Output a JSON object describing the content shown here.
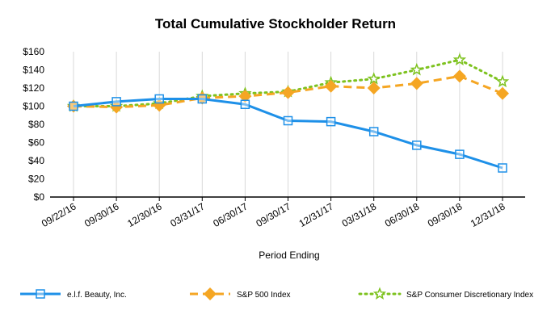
{
  "chart_data": {
    "type": "line",
    "title": "Total Cumulative Stockholder Return",
    "xlabel": "Period Ending",
    "ylabel": "",
    "categories": [
      "09/22/16",
      "09/30/16",
      "12/30/16",
      "03/31/17",
      "06/30/17",
      "09/30/17",
      "12/31/17",
      "03/31/18",
      "06/30/18",
      "09/30/18",
      "12/31/18"
    ],
    "ylim": [
      0,
      160
    ],
    "yticks": [
      "$0",
      "$20",
      "$40",
      "$60",
      "$80",
      "$100",
      "$120",
      "$140",
      "$160"
    ],
    "grid": "vertical",
    "legend": "bottom",
    "series": [
      {
        "name": "e.l.f. Beauty, Inc.",
        "color": "#1E90E8",
        "style": "solid",
        "marker": "square",
        "values": [
          100,
          105,
          108,
          108,
          102,
          84,
          83,
          72,
          57,
          47,
          32
        ]
      },
      {
        "name": "S&P 500 Index",
        "color": "#F5A623",
        "style": "dashed",
        "marker": "diamond",
        "values": [
          100,
          99,
          101,
          109,
          111,
          115,
          122,
          120,
          125,
          133,
          114
        ]
      },
      {
        "name": "S&P Consumer Discretionary Index",
        "color": "#7DC21E",
        "style": "dotted",
        "marker": "star",
        "values": [
          100,
          100,
          103,
          111,
          114,
          116,
          126,
          130,
          140,
          151,
          127
        ]
      }
    ]
  }
}
